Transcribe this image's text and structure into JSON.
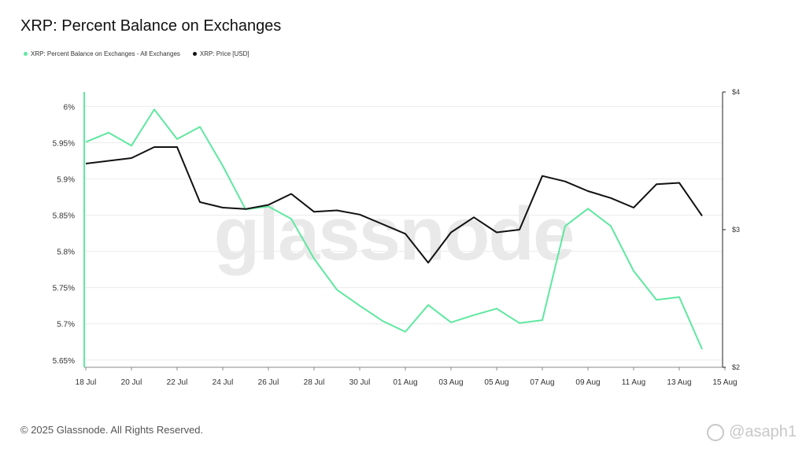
{
  "page": {
    "title": "XRP: Percent Balance on Exchanges",
    "footer": "© 2025 Glassnode. All Rights Reserved.",
    "watermark": "glassnode",
    "corner_tag": "@asaph1"
  },
  "legend": [
    {
      "label": "XRP: Percent Balance on Exchanges - All Exchanges",
      "color": "#5fe8a0"
    },
    {
      "label": "XRP: Price [USD]",
      "color": "#111111"
    }
  ],
  "chart_data": {
    "type": "line",
    "title": "XRP: Percent Balance on Exchanges",
    "x": [
      "18 Jul",
      "19 Jul",
      "20 Jul",
      "21 Jul",
      "22 Jul",
      "23 Jul",
      "24 Jul",
      "25 Jul",
      "26 Jul",
      "27 Jul",
      "28 Jul",
      "29 Jul",
      "30 Jul",
      "31 Jul",
      "01 Aug",
      "02 Aug",
      "03 Aug",
      "04 Aug",
      "05 Aug",
      "06 Aug",
      "07 Aug",
      "08 Aug",
      "09 Aug",
      "10 Aug",
      "11 Aug",
      "12 Aug",
      "13 Aug",
      "14 Aug"
    ],
    "x_tick_labels": [
      "18 Jul",
      "20 Jul",
      "22 Jul",
      "24 Jul",
      "26 Jul",
      "28 Jul",
      "30 Jul",
      "01 Aug",
      "03 Aug",
      "05 Aug",
      "07 Aug",
      "09 Aug",
      "11 Aug",
      "13 Aug",
      "15 Aug"
    ],
    "series": [
      {
        "name": "XRP: Percent Balance on Exchanges - All Exchanges",
        "axis": "left",
        "color": "#5fe8a0",
        "values": [
          5.951,
          5.964,
          5.946,
          5.996,
          5.955,
          5.972,
          5.918,
          5.858,
          5.862,
          5.845,
          5.79,
          5.747,
          5.725,
          5.704,
          5.689,
          5.726,
          5.702,
          5.712,
          5.721,
          5.701,
          5.705,
          5.835,
          5.859,
          5.835,
          5.773,
          5.733,
          5.737,
          5.665
        ]
      },
      {
        "name": "XRP: Price [USD]",
        "axis": "right",
        "color": "#111111",
        "values": [
          3.48,
          3.5,
          3.52,
          3.6,
          3.6,
          3.2,
          3.16,
          3.15,
          3.18,
          3.26,
          3.13,
          3.14,
          3.11,
          3.04,
          2.97,
          2.76,
          2.98,
          3.09,
          2.98,
          3.0,
          3.39,
          3.35,
          3.28,
          3.23,
          3.16,
          3.33,
          3.34,
          3.1
        ]
      }
    ],
    "y_left": {
      "ticks": [
        5.65,
        5.7,
        5.75,
        5.8,
        5.85,
        5.9,
        5.95,
        6.0
      ],
      "tick_labels": [
        "5.65%",
        "5.7%",
        "5.75%",
        "5.8%",
        "5.85%",
        "5.9%",
        "5.95%",
        "6%"
      ],
      "range": [
        5.64,
        6.02
      ]
    },
    "y_right": {
      "ticks": [
        2,
        3,
        4
      ],
      "tick_labels": [
        "$2",
        "$3",
        "$4"
      ],
      "range": [
        2,
        4
      ]
    },
    "grid": true
  }
}
